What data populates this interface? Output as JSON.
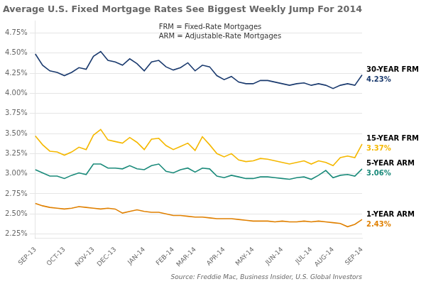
{
  "chart_data": {
    "type": "line",
    "title": "Average U.S. Fixed Mortgage Rates See Biggest Weekly Jump For 2014",
    "source": "Source: Freddie Mac, Business Insider, U.S. Global Investors",
    "annotations": [
      "FRM = Fixed-Rate Mortgages",
      "ARM = Adjustable-Rate Mortgages"
    ],
    "categories": [
      "SEP-13",
      null,
      null,
      null,
      "OCT-13",
      null,
      null,
      null,
      "NOV-13",
      null,
      null,
      "DEC-13",
      null,
      null,
      null,
      "JAN-14",
      null,
      null,
      null,
      "FEB-14",
      null,
      null,
      "MAR-14",
      null,
      null,
      null,
      "APR-14",
      null,
      null,
      null,
      "MAY-14",
      null,
      null,
      null,
      "JUN-14",
      null,
      null,
      null,
      "JUL-14",
      null,
      null,
      "AUG-14",
      null,
      null,
      null,
      "SEP-14"
    ],
    "series": [
      {
        "name": "30-YEAR FRM",
        "color": "#1a3a6e",
        "end_label": "4.23%",
        "values": [
          4.49,
          4.35,
          4.28,
          4.26,
          4.22,
          4.26,
          4.32,
          4.3,
          4.46,
          4.52,
          4.41,
          4.39,
          4.35,
          4.43,
          4.37,
          4.28,
          4.39,
          4.41,
          4.33,
          4.29,
          4.32,
          4.38,
          4.28,
          4.35,
          4.33,
          4.22,
          4.17,
          4.21,
          4.14,
          4.12,
          4.12,
          4.16,
          4.16,
          4.14,
          4.12,
          4.1,
          4.12,
          4.13,
          4.1,
          4.12,
          4.1,
          4.06,
          4.1,
          4.12,
          4.1,
          4.23
        ]
      },
      {
        "name": "15-YEAR FRM",
        "color": "#f5b800",
        "end_label": "3.37%",
        "values": [
          3.47,
          3.36,
          3.28,
          3.27,
          3.23,
          3.27,
          3.33,
          3.3,
          3.48,
          3.55,
          3.42,
          3.4,
          3.38,
          3.45,
          3.39,
          3.3,
          3.43,
          3.44,
          3.35,
          3.3,
          3.34,
          3.38,
          3.29,
          3.46,
          3.36,
          3.25,
          3.21,
          3.25,
          3.17,
          3.15,
          3.16,
          3.19,
          3.18,
          3.16,
          3.14,
          3.12,
          3.14,
          3.16,
          3.12,
          3.16,
          3.14,
          3.1,
          3.2,
          3.22,
          3.2,
          3.37
        ]
      },
      {
        "name": "5-YEAR ARM",
        "color": "#1a8a7a",
        "end_label": "3.06%",
        "values": [
          3.05,
          3.01,
          2.97,
          2.97,
          2.94,
          2.98,
          3.01,
          2.99,
          3.12,
          3.12,
          3.07,
          3.07,
          3.06,
          3.1,
          3.06,
          3.05,
          3.1,
          3.12,
          3.03,
          3.01,
          3.05,
          3.07,
          3.02,
          3.07,
          3.06,
          2.97,
          2.95,
          2.98,
          2.96,
          2.94,
          2.94,
          2.96,
          2.96,
          2.95,
          2.94,
          2.93,
          2.95,
          2.96,
          2.93,
          2.98,
          3.04,
          2.95,
          2.98,
          2.99,
          2.97,
          3.06
        ]
      },
      {
        "name": "1-YEAR ARM",
        "color": "#e08000",
        "end_label": "2.43%",
        "values": [
          2.63,
          2.6,
          2.58,
          2.57,
          2.56,
          2.57,
          2.59,
          2.58,
          2.57,
          2.56,
          2.57,
          2.56,
          2.51,
          2.53,
          2.55,
          2.53,
          2.52,
          2.52,
          2.5,
          2.48,
          2.48,
          2.47,
          2.46,
          2.46,
          2.45,
          2.44,
          2.44,
          2.44,
          2.43,
          2.42,
          2.41,
          2.41,
          2.41,
          2.4,
          2.41,
          2.4,
          2.4,
          2.41,
          2.4,
          2.41,
          2.4,
          2.39,
          2.38,
          2.34,
          2.37,
          2.43
        ]
      }
    ],
    "ylim": [
      2.2,
      4.9
    ],
    "yticks": [
      {
        "value": 2.25,
        "label": "2.25%"
      },
      {
        "value": 2.5,
        "label": "2.50%"
      },
      {
        "value": 2.75,
        "label": "2.75%"
      },
      {
        "value": 3.0,
        "label": "3.00%"
      },
      {
        "value": 3.25,
        "label": "3.25%"
      },
      {
        "value": 3.5,
        "label": "3.50%"
      },
      {
        "value": 3.75,
        "label": "3.75%"
      },
      {
        "value": 4.0,
        "label": "4.00%"
      },
      {
        "value": 4.25,
        "label": "4.25%"
      },
      {
        "value": 4.5,
        "label": "4.50%"
      },
      {
        "value": 4.75,
        "label": "4.75%"
      }
    ],
    "grid": "y"
  }
}
